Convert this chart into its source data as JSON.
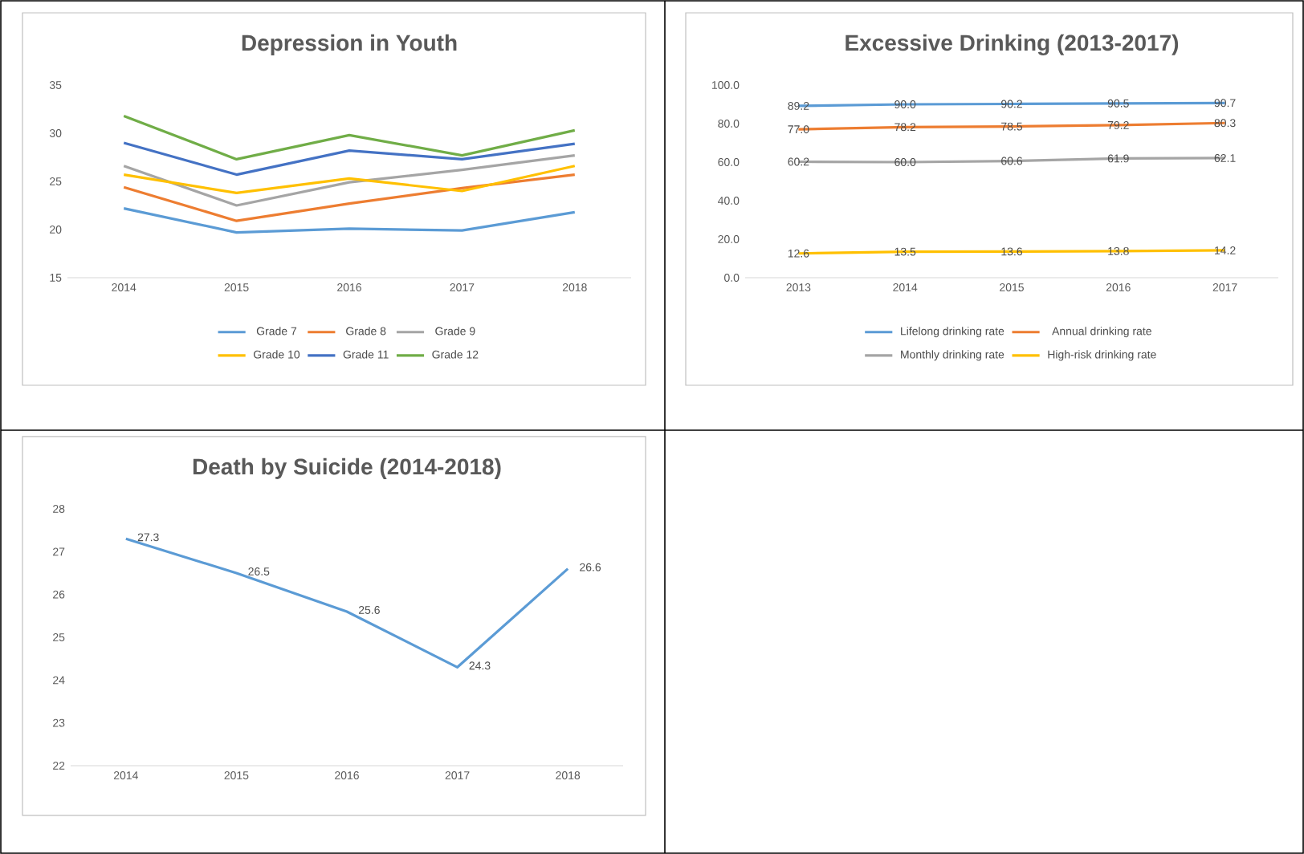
{
  "chart_data": [
    {
      "type": "line",
      "title": "Depression in Youth",
      "categories": [
        "2014",
        "2015",
        "2016",
        "2017",
        "2018"
      ],
      "ylim": [
        15,
        35
      ],
      "yticks": [
        15,
        20,
        25,
        30,
        35
      ],
      "legend": "bottom",
      "series": [
        {
          "name": "Grade 7",
          "color": "#5b9bd5",
          "values": [
            22.2,
            19.7,
            20.1,
            19.9,
            21.8
          ]
        },
        {
          "name": "Grade 8",
          "color": "#ed7d31",
          "values": [
            24.4,
            20.9,
            22.7,
            24.3,
            25.7
          ]
        },
        {
          "name": "Grade 9",
          "color": "#a5a5a5",
          "values": [
            26.6,
            22.5,
            24.9,
            26.2,
            27.7
          ]
        },
        {
          "name": "Grade 10",
          "color": "#ffc000",
          "values": [
            25.7,
            23.8,
            25.3,
            24.0,
            26.6
          ]
        },
        {
          "name": "Grade 11",
          "color": "#4472c4",
          "values": [
            29.0,
            25.7,
            28.2,
            27.3,
            28.9
          ]
        },
        {
          "name": "Grade 12",
          "color": "#70ad47",
          "values": [
            31.8,
            27.3,
            29.8,
            27.7,
            30.3
          ]
        }
      ]
    },
    {
      "type": "line",
      "title": "Excessive Drinking (2013-2017)",
      "categories": [
        "2013",
        "2014",
        "2015",
        "2016",
        "2017"
      ],
      "ylim": [
        0,
        100
      ],
      "yticks": [
        {
          "value": 0,
          "label": "0.0"
        },
        {
          "value": 20,
          "label": "20.0"
        },
        {
          "value": 40,
          "label": "40.0"
        },
        {
          "value": 60,
          "label": "60.0"
        },
        {
          "value": 80,
          "label": "80.0"
        },
        {
          "value": 100,
          "label": "100.0"
        }
      ],
      "legend": "bottom",
      "series": [
        {
          "name": "Lifelong drinking rate",
          "color": "#5b9bd5",
          "values": [
            89.2,
            90.0,
            90.2,
            90.5,
            90.7
          ],
          "value_labels": [
            "89.2",
            "90.0",
            "90.2",
            "90.5",
            "90.7"
          ]
        },
        {
          "name": "Annual drinking rate",
          "color": "#ed7d31",
          "values": [
            77.0,
            78.2,
            78.5,
            79.2,
            80.3
          ],
          "value_labels": [
            "77.0",
            "78.2",
            "78.5",
            "79.2",
            "80.3"
          ]
        },
        {
          "name": "Monthly drinking rate",
          "color": "#a5a5a5",
          "values": [
            60.2,
            60.0,
            60.6,
            61.9,
            62.1
          ],
          "value_labels": [
            "60.2",
            "60.0",
            "60.6",
            "61.9",
            "62.1"
          ]
        },
        {
          "name": "High-risk drinking rate",
          "color": "#ffc000",
          "values": [
            12.6,
            13.5,
            13.6,
            13.8,
            14.2
          ],
          "value_labels": [
            "12.6",
            "13.5",
            "13.6",
            "13.8",
            "14.2"
          ]
        }
      ]
    },
    {
      "type": "line",
      "title": "Death by Suicide (2014-2018)",
      "categories": [
        "2014",
        "2015",
        "2016",
        "2017",
        "2018"
      ],
      "ylim": [
        22,
        28
      ],
      "yticks": [
        22,
        23,
        24,
        25,
        26,
        27,
        28
      ],
      "data_labels": true,
      "series": [
        {
          "color": "#5b9bd5",
          "values": [
            27.3,
            26.5,
            25.6,
            24.3,
            26.6
          ]
        }
      ]
    }
  ]
}
